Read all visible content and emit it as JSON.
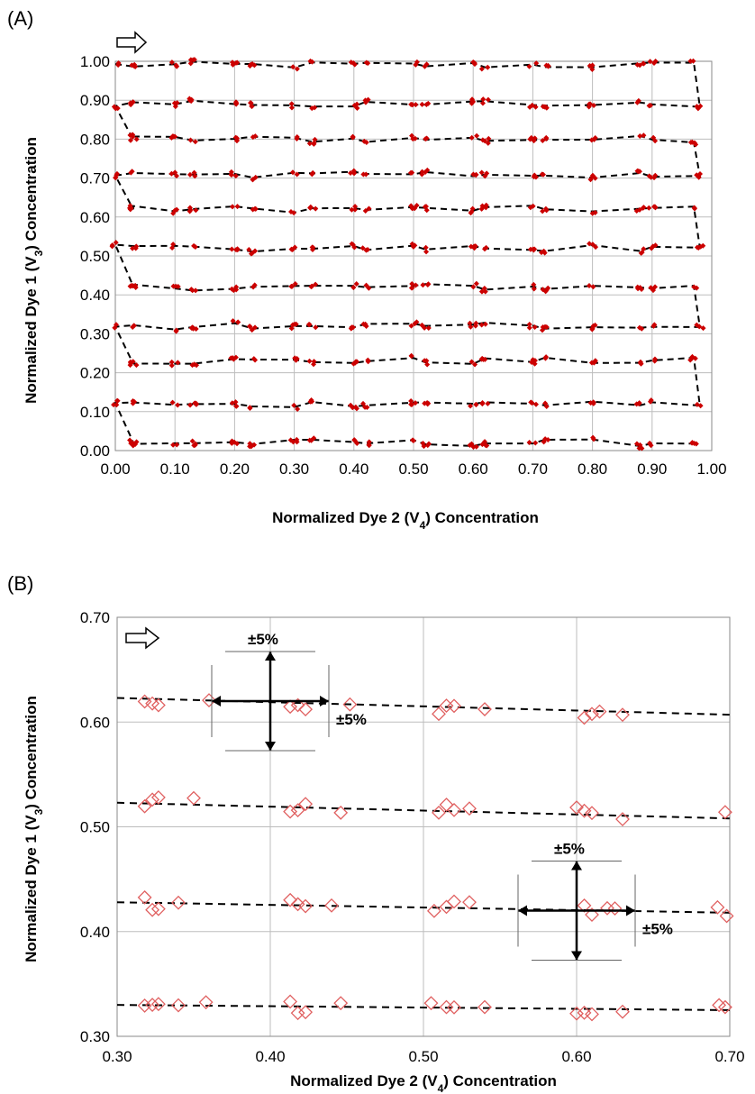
{
  "chart_data": [
    {
      "panel": "(A)",
      "type": "scatter",
      "xlabel": "Normalized Dye 2 (V4) Concentration",
      "ylabel": "Normalized Dye 1 (V3) Concentration",
      "xlim": [
        0,
        1
      ],
      "ylim": [
        0,
        1
      ],
      "xticks": [
        "0.00",
        "0.10",
        "0.20",
        "0.30",
        "0.40",
        "0.50",
        "0.60",
        "0.70",
        "0.80",
        "0.90",
        "1.00"
      ],
      "yticks": [
        "0.00",
        "0.10",
        "0.20",
        "0.30",
        "0.40",
        "0.50",
        "0.60",
        "0.70",
        "0.80",
        "0.90",
        "1.00"
      ],
      "grid": true,
      "marker_color": "#cc0000",
      "line_style": "dashed",
      "path_rows_y": [
        0.99,
        0.89,
        0.8,
        0.71,
        0.62,
        0.52,
        0.42,
        0.32,
        0.23,
        0.12,
        0.02
      ],
      "path_x": [
        0.0,
        0.03,
        0.1,
        0.13,
        0.2,
        0.23,
        0.3,
        0.33,
        0.4,
        0.42,
        0.5,
        0.52,
        0.6,
        0.62,
        0.7,
        0.72,
        0.8,
        0.88,
        0.9,
        0.97
      ]
    },
    {
      "panel": "(B)",
      "type": "scatter",
      "xlabel": "Normalized Dye 2 (V4) Concentration",
      "ylabel": "Normalized Dye 1 (V3) Concentration",
      "xlim": [
        0.3,
        0.7
      ],
      "ylim": [
        0.3,
        0.7
      ],
      "xticks": [
        "0.30",
        "0.40",
        "0.50",
        "0.60",
        "0.70"
      ],
      "yticks": [
        "0.30",
        "0.40",
        "0.50",
        "0.60",
        "0.70"
      ],
      "grid": true,
      "marker_color": "#e06060",
      "line_style": "dashed",
      "rows": [
        {
          "y_start": 0.623,
          "y_end": 0.607,
          "x": [
            0.318,
            0.323,
            0.327,
            0.36,
            0.413,
            0.418,
            0.423,
            0.452,
            0.51,
            0.515,
            0.52,
            0.54,
            0.605,
            0.61,
            0.615,
            0.63
          ]
        },
        {
          "y_start": 0.523,
          "y_end": 0.508,
          "x": [
            0.318,
            0.323,
            0.327,
            0.35,
            0.413,
            0.418,
            0.423,
            0.446,
            0.51,
            0.515,
            0.52,
            0.53,
            0.6,
            0.605,
            0.61,
            0.63,
            0.697
          ]
        },
        {
          "y_start": 0.428,
          "y_end": 0.418,
          "x": [
            0.318,
            0.323,
            0.327,
            0.34,
            0.413,
            0.418,
            0.423,
            0.44,
            0.507,
            0.515,
            0.52,
            0.53,
            0.605,
            0.61,
            0.62,
            0.625,
            0.692,
            0.698
          ]
        },
        {
          "y_start": 0.33,
          "y_end": 0.325,
          "x": [
            0.318,
            0.323,
            0.327,
            0.34,
            0.358,
            0.413,
            0.418,
            0.423,
            0.446,
            0.505,
            0.515,
            0.52,
            0.54,
            0.6,
            0.605,
            0.61,
            0.63,
            0.693,
            0.697
          ]
        }
      ],
      "annotations": [
        {
          "text": "±5%",
          "at": [
            0.4,
            0.62
          ]
        },
        {
          "text": "±5%",
          "at": [
            0.6,
            0.42
          ]
        }
      ]
    }
  ],
  "labels": {
    "panel_a": "(A)",
    "panel_b": "(B)",
    "xlabel": "Normalized Dye 2 (V",
    "xlabel_sub": "4",
    "xlabel_tail": ") Concentration",
    "ylabel": "Normalized Dye 1 (V",
    "ylabel_sub": "3",
    "ylabel_tail": ") Concentration",
    "pm5": "±5%"
  }
}
